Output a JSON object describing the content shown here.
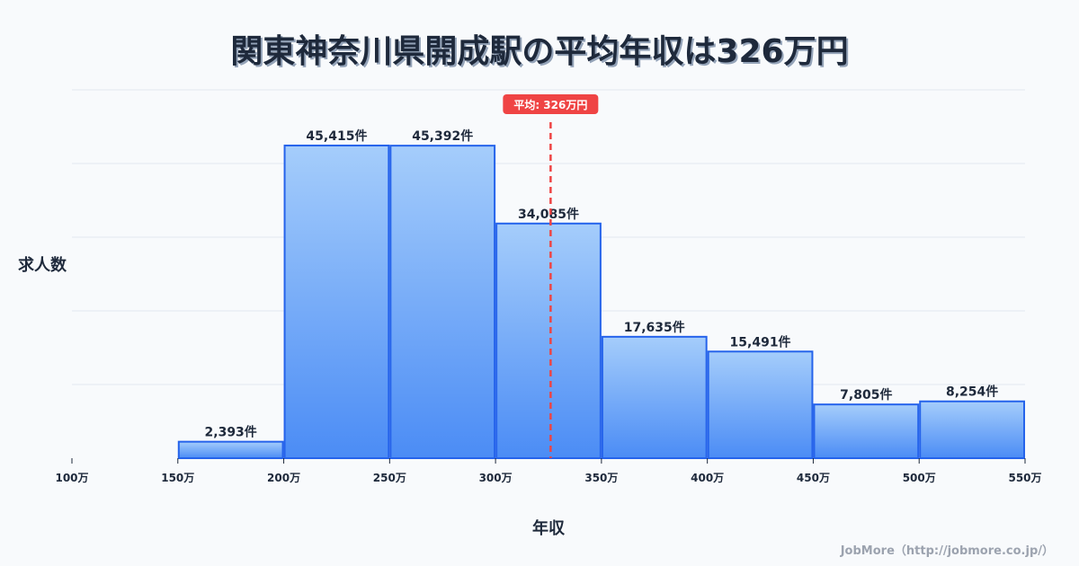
{
  "header": {
    "title": "関東神奈川県開成駅の平均年収は326万円"
  },
  "axes": {
    "ylabel": "求人数",
    "xlabel": "年収"
  },
  "credit": "JobMore（http://jobmore.co.jp/）",
  "average_marker": {
    "label": "平均: 326万円",
    "value": 326,
    "color": "#ef4444"
  },
  "colors": {
    "bar_top": "#a5cdfb",
    "bar_bottom": "#4b8cf5",
    "bar_stroke": "#2563eb",
    "grid": "#e2e8f0",
    "text": "#1e293b"
  },
  "chart_data": {
    "type": "bar",
    "title": "関東神奈川県開成駅の平均年収は326万円",
    "xlabel": "年収",
    "ylabel": "求人数",
    "x_ticks": [
      "100万",
      "150万",
      "200万",
      "250万",
      "300万",
      "350万",
      "400万",
      "450万",
      "500万",
      "550万"
    ],
    "categories": [
      "100-150万",
      "150-200万",
      "200-250万",
      "250-300万",
      "300-350万",
      "350-400万",
      "400-450万",
      "450-500万",
      "500-550万"
    ],
    "values": [
      0,
      2393,
      45415,
      45392,
      34085,
      17635,
      15491,
      7805,
      8254
    ],
    "value_labels": [
      "",
      "2,393件",
      "45,415件",
      "45,392件",
      "34,085件",
      "17,635件",
      "15,491件",
      "7,805件",
      "8,254件"
    ],
    "xlim": [
      100,
      550
    ],
    "ylim": [
      0,
      53500
    ],
    "grid": true,
    "average_line": 326,
    "average_label": "平均: 326万円"
  }
}
